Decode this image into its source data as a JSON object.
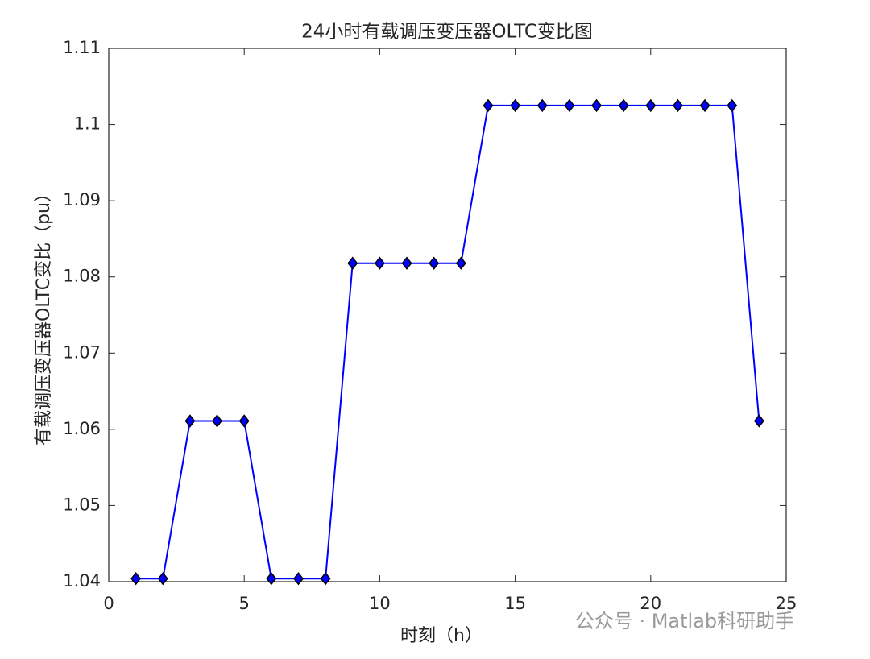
{
  "chart_data": {
    "type": "line",
    "title": "24小时有载调压变压器OLTC变比图",
    "x_label": "时刻（h）",
    "y_label": "有载调压变压器OLTC变比（pu）",
    "x": [
      1,
      2,
      3,
      4,
      5,
      6,
      7,
      8,
      9,
      10,
      11,
      12,
      13,
      14,
      15,
      16,
      17,
      18,
      19,
      20,
      21,
      22,
      23,
      24
    ],
    "series": [
      {
        "color": "#0000ff",
        "marker_color": "#0000ff",
        "values": [
          1.0404,
          1.0404,
          1.0611,
          1.0611,
          1.0611,
          1.0404,
          1.0404,
          1.0404,
          1.0818,
          1.0818,
          1.0818,
          1.0818,
          1.0818,
          1.1025,
          1.1025,
          1.1025,
          1.1025,
          1.1025,
          1.1025,
          1.1025,
          1.1025,
          1.1025,
          1.1025,
          1.0611
        ]
      }
    ],
    "xlim": [
      0,
      25
    ],
    "xticks": [
      0,
      5,
      10,
      15,
      20,
      25
    ],
    "ylim": [
      1.04,
      1.11
    ],
    "yticks": [
      1.04,
      1.05,
      1.06,
      1.07,
      1.08,
      1.09,
      1.1,
      1.11
    ],
    "watermark": "公众号 · Matlab科研助手"
  }
}
